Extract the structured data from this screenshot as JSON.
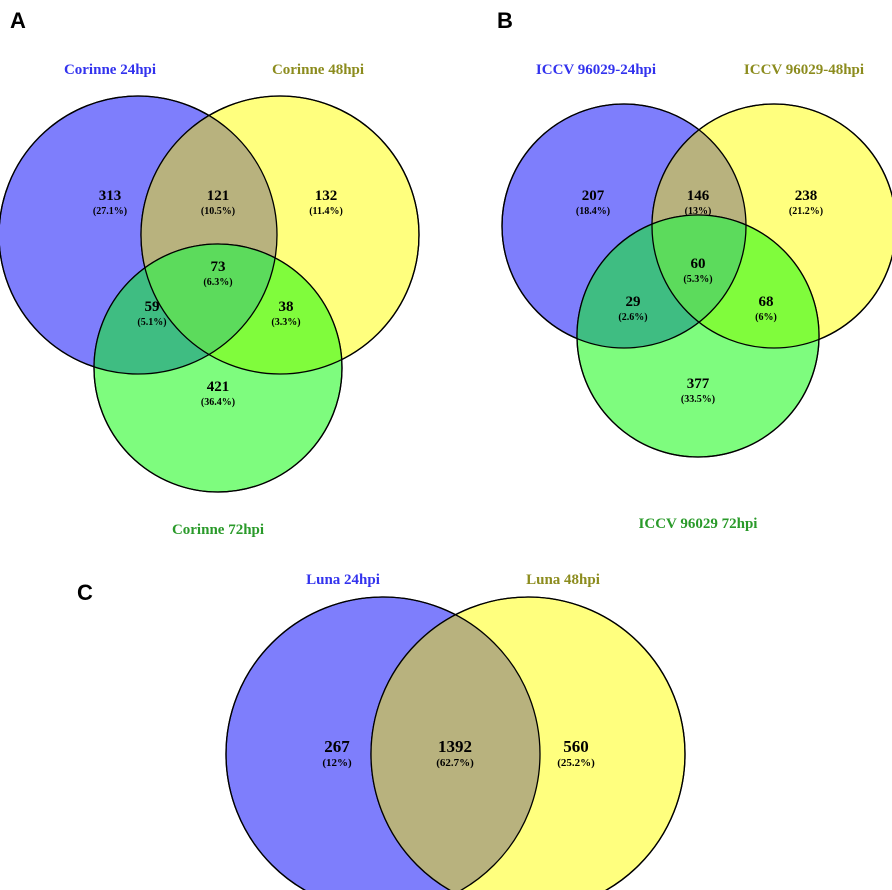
{
  "colors": {
    "set1_fill": "#7e7efc",
    "set2_fill": "#ffff7e",
    "set3_fill": "#7efc7e",
    "set1_label": "#3333ee",
    "set2_label": "#8c8c1e",
    "set3_label": "#2a9a2a"
  },
  "panels": {
    "A": {
      "letter": "A",
      "labels": {
        "set1": "Corinne 24hpi",
        "set2": "Corinne 48hpi",
        "set3": "Corinne 72hpi"
      },
      "regions": {
        "only1": {
          "count": "313",
          "pct": "(27.1%)"
        },
        "r12": {
          "count": "121",
          "pct": "(10.5%)"
        },
        "only2": {
          "count": "132",
          "pct": "(11.4%)"
        },
        "r123": {
          "count": "73",
          "pct": "(6.3%)"
        },
        "r13": {
          "count": "59",
          "pct": "(5.1%)"
        },
        "r23": {
          "count": "38",
          "pct": "(3.3%)"
        },
        "only3": {
          "count": "421",
          "pct": "(36.4%)"
        }
      }
    },
    "B": {
      "letter": "B",
      "labels": {
        "set1": "ICCV 96029-24hpi",
        "set2": "ICCV 96029-48hpi",
        "set3": "ICCV 96029 72hpi"
      },
      "regions": {
        "only1": {
          "count": "207",
          "pct": "(18.4%)"
        },
        "r12": {
          "count": "146",
          "pct": "(13%)"
        },
        "only2": {
          "count": "238",
          "pct": "(21.2%)"
        },
        "r123": {
          "count": "60",
          "pct": "(5.3%)"
        },
        "r13": {
          "count": "29",
          "pct": "(2.6%)"
        },
        "r23": {
          "count": "68",
          "pct": "(6%)"
        },
        "only3": {
          "count": "377",
          "pct": "(33.5%)"
        }
      }
    },
    "C": {
      "letter": "C",
      "labels": {
        "set1": "Luna 24hpi",
        "set2": "Luna 48hpi"
      },
      "regions": {
        "only1": {
          "count": "267",
          "pct": "(12%)"
        },
        "r12": {
          "count": "1392",
          "pct": "(62.7%)"
        },
        "only2": {
          "count": "560",
          "pct": "(25.2%)"
        }
      }
    }
  }
}
